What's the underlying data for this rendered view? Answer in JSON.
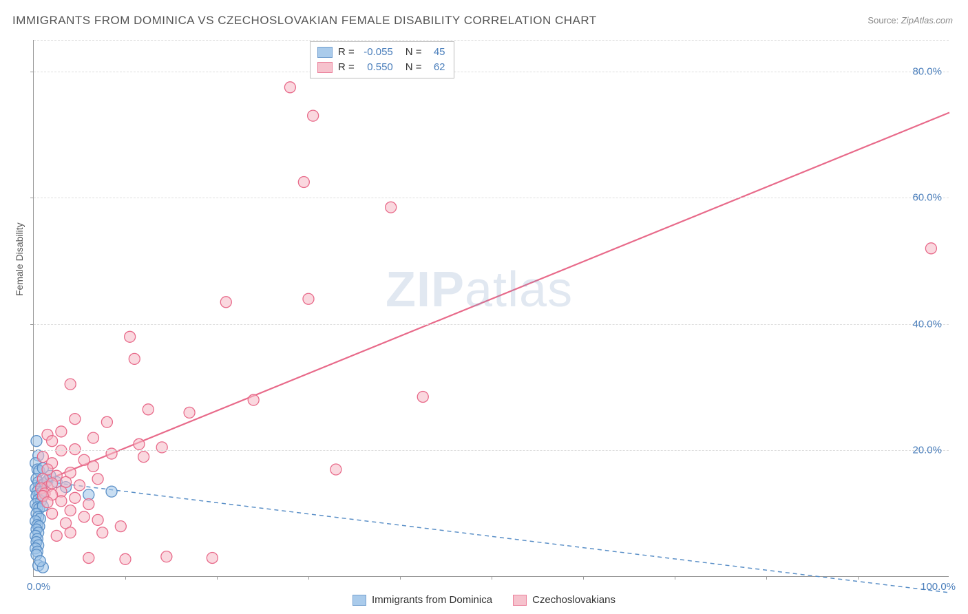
{
  "title": "IMMIGRANTS FROM DOMINICA VS CZECHOSLOVAKIAN FEMALE DISABILITY CORRELATION CHART",
  "source_label": "Source:",
  "source_value": "ZipAtlas.com",
  "watermark_zip": "ZIP",
  "watermark_atlas": "atlas",
  "y_axis_label": "Female Disability",
  "axes": {
    "xlim": [
      0,
      100
    ],
    "ylim": [
      0,
      85
    ],
    "y_ticks": [
      20,
      40,
      60,
      80
    ],
    "y_tick_labels": [
      "20.0%",
      "40.0%",
      "60.0%",
      "80.0%"
    ],
    "x_tick_labels": [
      "0.0%",
      "100.0%"
    ],
    "x_minor_ticks": [
      10,
      20,
      30,
      40,
      50,
      60,
      70,
      80,
      90
    ],
    "grid_color": "#dddddd",
    "axis_color": "#999999",
    "tick_label_color": "#4a7ebb"
  },
  "legend_top": {
    "rows": [
      {
        "R_label": "R =",
        "R_value": "-0.055",
        "N_label": "N =",
        "N_value": "45"
      },
      {
        "R_label": "R =",
        "R_value": "0.550",
        "N_label": "N =",
        "N_value": "62"
      }
    ]
  },
  "series": [
    {
      "name": "Immigrants from Dominica",
      "color_fill": "#9cc3e8",
      "color_stroke": "#5a8fc7",
      "fill_opacity": 0.55,
      "marker_radius": 8,
      "regression": {
        "x1": 0,
        "y1": 15.3,
        "x2": 100,
        "y2": -2.5,
        "dash": "6,5",
        "width": 1.5,
        "color": "#5a8fc7"
      },
      "points": [
        [
          0.3,
          21.5
        ],
        [
          0.5,
          19.2
        ],
        [
          0.2,
          18.0
        ],
        [
          0.4,
          17.0
        ],
        [
          0.6,
          16.8
        ],
        [
          1.0,
          17.2
        ],
        [
          0.3,
          15.5
        ],
        [
          0.5,
          15.0
        ],
        [
          0.8,
          14.5
        ],
        [
          1.2,
          14.8
        ],
        [
          1.5,
          15.2
        ],
        [
          0.2,
          14.0
        ],
        [
          0.4,
          13.5
        ],
        [
          0.7,
          13.2
        ],
        [
          1.0,
          13.5
        ],
        [
          0.3,
          12.8
        ],
        [
          0.5,
          12.2
        ],
        [
          0.8,
          12.0
        ],
        [
          0.2,
          11.5
        ],
        [
          0.4,
          11.0
        ],
        [
          0.6,
          10.8
        ],
        [
          1.0,
          11.2
        ],
        [
          0.3,
          10.0
        ],
        [
          0.5,
          9.5
        ],
        [
          0.7,
          9.2
        ],
        [
          0.2,
          8.8
        ],
        [
          0.4,
          8.2
        ],
        [
          0.6,
          8.0
        ],
        [
          0.3,
          7.5
        ],
        [
          0.5,
          7.0
        ],
        [
          0.2,
          6.5
        ],
        [
          0.4,
          6.0
        ],
        [
          0.3,
          5.5
        ],
        [
          0.5,
          5.0
        ],
        [
          0.2,
          4.5
        ],
        [
          0.4,
          4.0
        ],
        [
          0.3,
          3.5
        ],
        [
          0.5,
          1.8
        ],
        [
          1.0,
          1.5
        ],
        [
          0.7,
          2.5
        ],
        [
          2.5,
          15.0
        ],
        [
          3.5,
          14.2
        ],
        [
          6.0,
          13.0
        ],
        [
          8.5,
          13.5
        ],
        [
          1.8,
          16.0
        ]
      ]
    },
    {
      "name": "Czechoslovakians",
      "color_fill": "#f5b8c5",
      "color_stroke": "#e86a8a",
      "fill_opacity": 0.55,
      "marker_radius": 8,
      "regression": {
        "x1": 0,
        "y1": 14.5,
        "x2": 100,
        "y2": 73.5,
        "dash": null,
        "width": 2.2,
        "color": "#e86a8a"
      },
      "points": [
        [
          28.0,
          77.5
        ],
        [
          30.5,
          73.0
        ],
        [
          29.5,
          62.5
        ],
        [
          39.0,
          58.5
        ],
        [
          98.0,
          52.0
        ],
        [
          21.0,
          43.5
        ],
        [
          30.0,
          44.0
        ],
        [
          10.5,
          38.0
        ],
        [
          11.0,
          34.5
        ],
        [
          4.0,
          30.5
        ],
        [
          42.5,
          28.5
        ],
        [
          24.0,
          28.0
        ],
        [
          12.5,
          26.5
        ],
        [
          17.0,
          26.0
        ],
        [
          33.0,
          17.0
        ],
        [
          4.5,
          25.0
        ],
        [
          8.0,
          24.5
        ],
        [
          3.0,
          23.0
        ],
        [
          1.5,
          22.5
        ],
        [
          6.5,
          22.0
        ],
        [
          14.0,
          20.5
        ],
        [
          11.5,
          21.0
        ],
        [
          2.0,
          21.5
        ],
        [
          4.5,
          20.2
        ],
        [
          8.5,
          19.5
        ],
        [
          12.0,
          19.0
        ],
        [
          3.0,
          20.0
        ],
        [
          1.0,
          19.0
        ],
        [
          5.5,
          18.5
        ],
        [
          2.0,
          18.0
        ],
        [
          6.5,
          17.5
        ],
        [
          1.5,
          17.0
        ],
        [
          4.0,
          16.5
        ],
        [
          2.5,
          16.0
        ],
        [
          7.0,
          15.5
        ],
        [
          1.0,
          15.5
        ],
        [
          3.5,
          15.0
        ],
        [
          5.0,
          14.5
        ],
        [
          1.5,
          14.2
        ],
        [
          2.0,
          14.8
        ],
        [
          0.8,
          14.0
        ],
        [
          3.0,
          13.5
        ],
        [
          1.2,
          13.2
        ],
        [
          4.5,
          12.5
        ],
        [
          2.0,
          13.0
        ],
        [
          1.0,
          12.8
        ],
        [
          6.0,
          11.5
        ],
        [
          3.0,
          12.0
        ],
        [
          1.5,
          11.8
        ],
        [
          4.0,
          10.5
        ],
        [
          2.0,
          10.0
        ],
        [
          7.0,
          9.0
        ],
        [
          9.5,
          8.0
        ],
        [
          5.5,
          9.5
        ],
        [
          3.5,
          8.5
        ],
        [
          6.0,
          3.0
        ],
        [
          10.0,
          2.8
        ],
        [
          14.5,
          3.2
        ],
        [
          19.5,
          3.0
        ],
        [
          7.5,
          7.0
        ],
        [
          4.0,
          7.0
        ],
        [
          2.5,
          6.5
        ]
      ]
    }
  ]
}
